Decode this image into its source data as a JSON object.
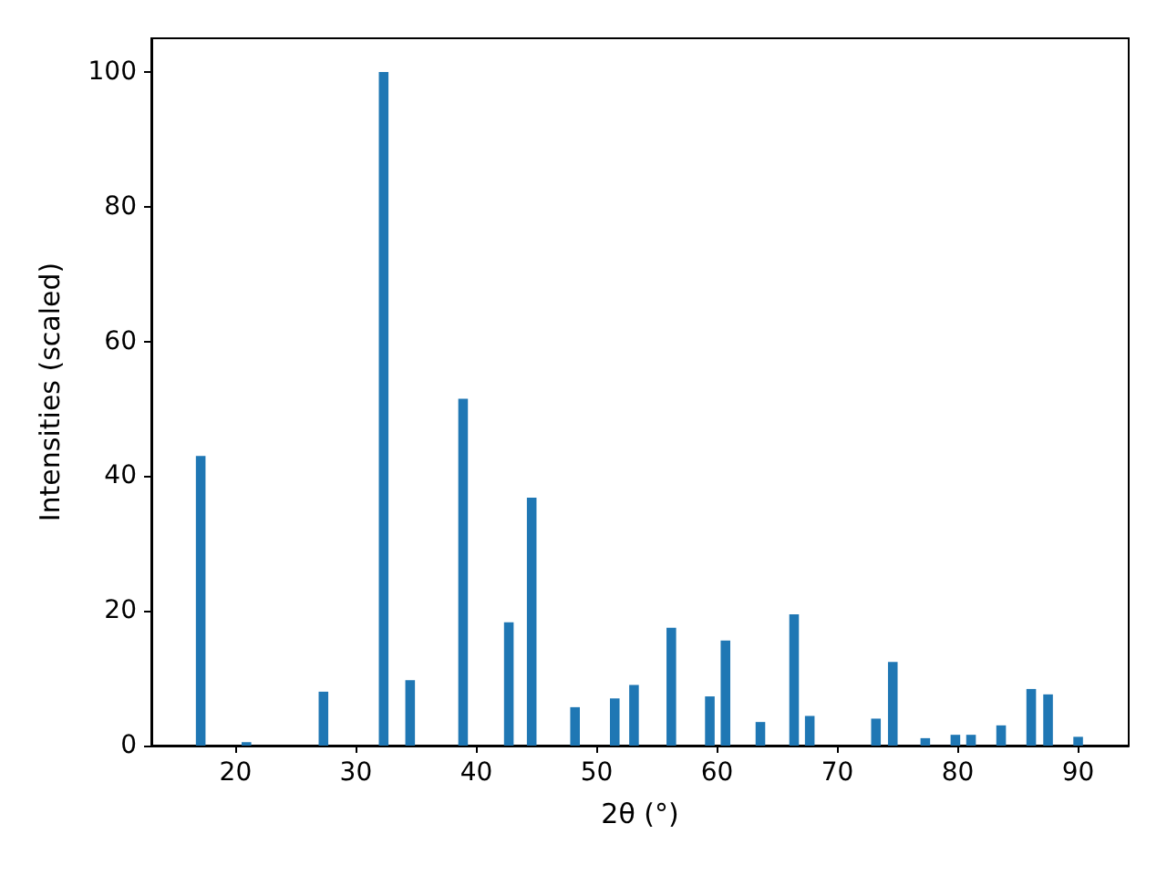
{
  "chart_data": {
    "type": "bar",
    "xlabel": "2θ (°)",
    "ylabel": "Intensities (scaled)",
    "color": "#1f77b4",
    "x": [
      17.1,
      20.9,
      27.3,
      32.3,
      34.5,
      38.9,
      42.7,
      44.6,
      48.2,
      51.5,
      53.1,
      56.2,
      59.4,
      60.7,
      63.6,
      66.4,
      67.7,
      73.2,
      74.6,
      77.3,
      79.8,
      81.1,
      83.6,
      86.1,
      87.5,
      90.0
    ],
    "values": [
      43,
      0.5,
      8,
      100,
      9.7,
      51.5,
      18.3,
      36.8,
      5.7,
      7,
      9,
      17.5,
      7.3,
      15.6,
      3.5,
      19.5,
      4.4,
      4,
      12.4,
      1.1,
      1.6,
      1.6,
      3,
      8.4,
      7.6,
      1.3
    ],
    "xlim": [
      13,
      94.2
    ],
    "xticks": [
      20,
      30,
      40,
      50,
      60,
      70,
      80,
      90
    ],
    "ylim": [
      0,
      105
    ],
    "yticks": [
      0,
      20,
      40,
      60,
      80,
      100
    ],
    "grid": false
  }
}
